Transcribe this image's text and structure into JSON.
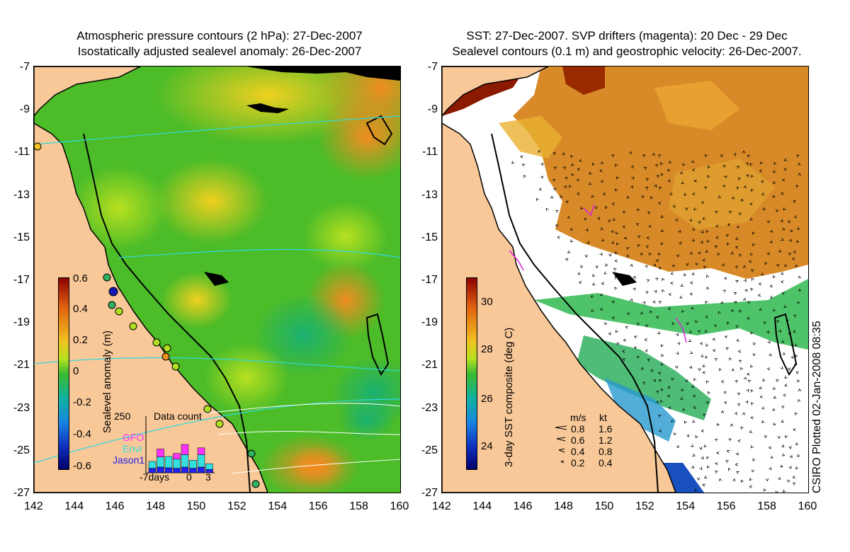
{
  "left_panel": {
    "title_line1": "Atmospheric pressure contours (2 hPa): 27-Dec-2007",
    "title_line2": "Isostatically adjusted sealevel anomaly: 26-Dec-2007",
    "colorbar_title": "Sealevel anomaly (m)",
    "colorbar_ticks": [
      "0.6",
      "0.4",
      "0.2",
      "0",
      "-0.2",
      "-0.4",
      "-0.6"
    ],
    "inset": {
      "title": "Data count",
      "y_max_label": "250",
      "x_labels": [
        "-7days",
        "0",
        "3"
      ],
      "legend": [
        {
          "name": "GFO",
          "color": "#ff33ff"
        },
        {
          "name": "Envi",
          "color": "#33e0e0"
        },
        {
          "name": "Jason1",
          "color": "#2222ee"
        }
      ],
      "bars": [
        {
          "jason": 20,
          "envi": 30,
          "gfo": 0
        },
        {
          "jason": 25,
          "envi": 45,
          "gfo": 35
        },
        {
          "jason": 22,
          "envi": 50,
          "gfo": 0
        },
        {
          "jason": 20,
          "envi": 40,
          "gfo": 25
        },
        {
          "jason": 25,
          "envi": 55,
          "gfo": 45
        },
        {
          "jason": 20,
          "envi": 35,
          "gfo": 0
        },
        {
          "jason": 25,
          "envi": 55,
          "gfo": 30
        },
        {
          "jason": 15,
          "envi": 25,
          "gfo": 0
        }
      ]
    }
  },
  "right_panel": {
    "title_line1": "SST: 27-Dec-2007. SVP drifters (magenta): 20 Dec - 29 Dec",
    "title_line2": "Sealevel contours (0.1 m) and geostrophic velocity: 26-Dec-2007.",
    "colorbar_title": "3-day SST composite (deg C)",
    "colorbar_ticks": [
      "30",
      "28",
      "26",
      "24"
    ],
    "velocity_legend": {
      "header_ms": "m/s",
      "header_kt": "kt",
      "rows": [
        {
          "ms": "0.8",
          "kt": "1.6"
        },
        {
          "ms": "0.6",
          "kt": "1.2"
        },
        {
          "ms": "0.4",
          "kt": "0.8"
        },
        {
          "ms": "0.2",
          "kt": "0.4"
        }
      ]
    },
    "credit": "CSIRO Plotted 02-Jan-2008 08:35"
  },
  "axes": {
    "y_ticks": [
      "-7",
      "-9",
      "-11",
      "-13",
      "-15",
      "-17",
      "-19",
      "-21",
      "-23",
      "-25",
      "-27"
    ],
    "x_ticks": [
      "142",
      "144",
      "146",
      "148",
      "150",
      "152",
      "154",
      "156",
      "158",
      "160"
    ]
  },
  "colors": {
    "land": "#f8c898",
    "ocean_green": "#55c020",
    "coastline": "#000000",
    "sst_warm": "#d07818",
    "sst_hot": "#8b1a00"
  }
}
